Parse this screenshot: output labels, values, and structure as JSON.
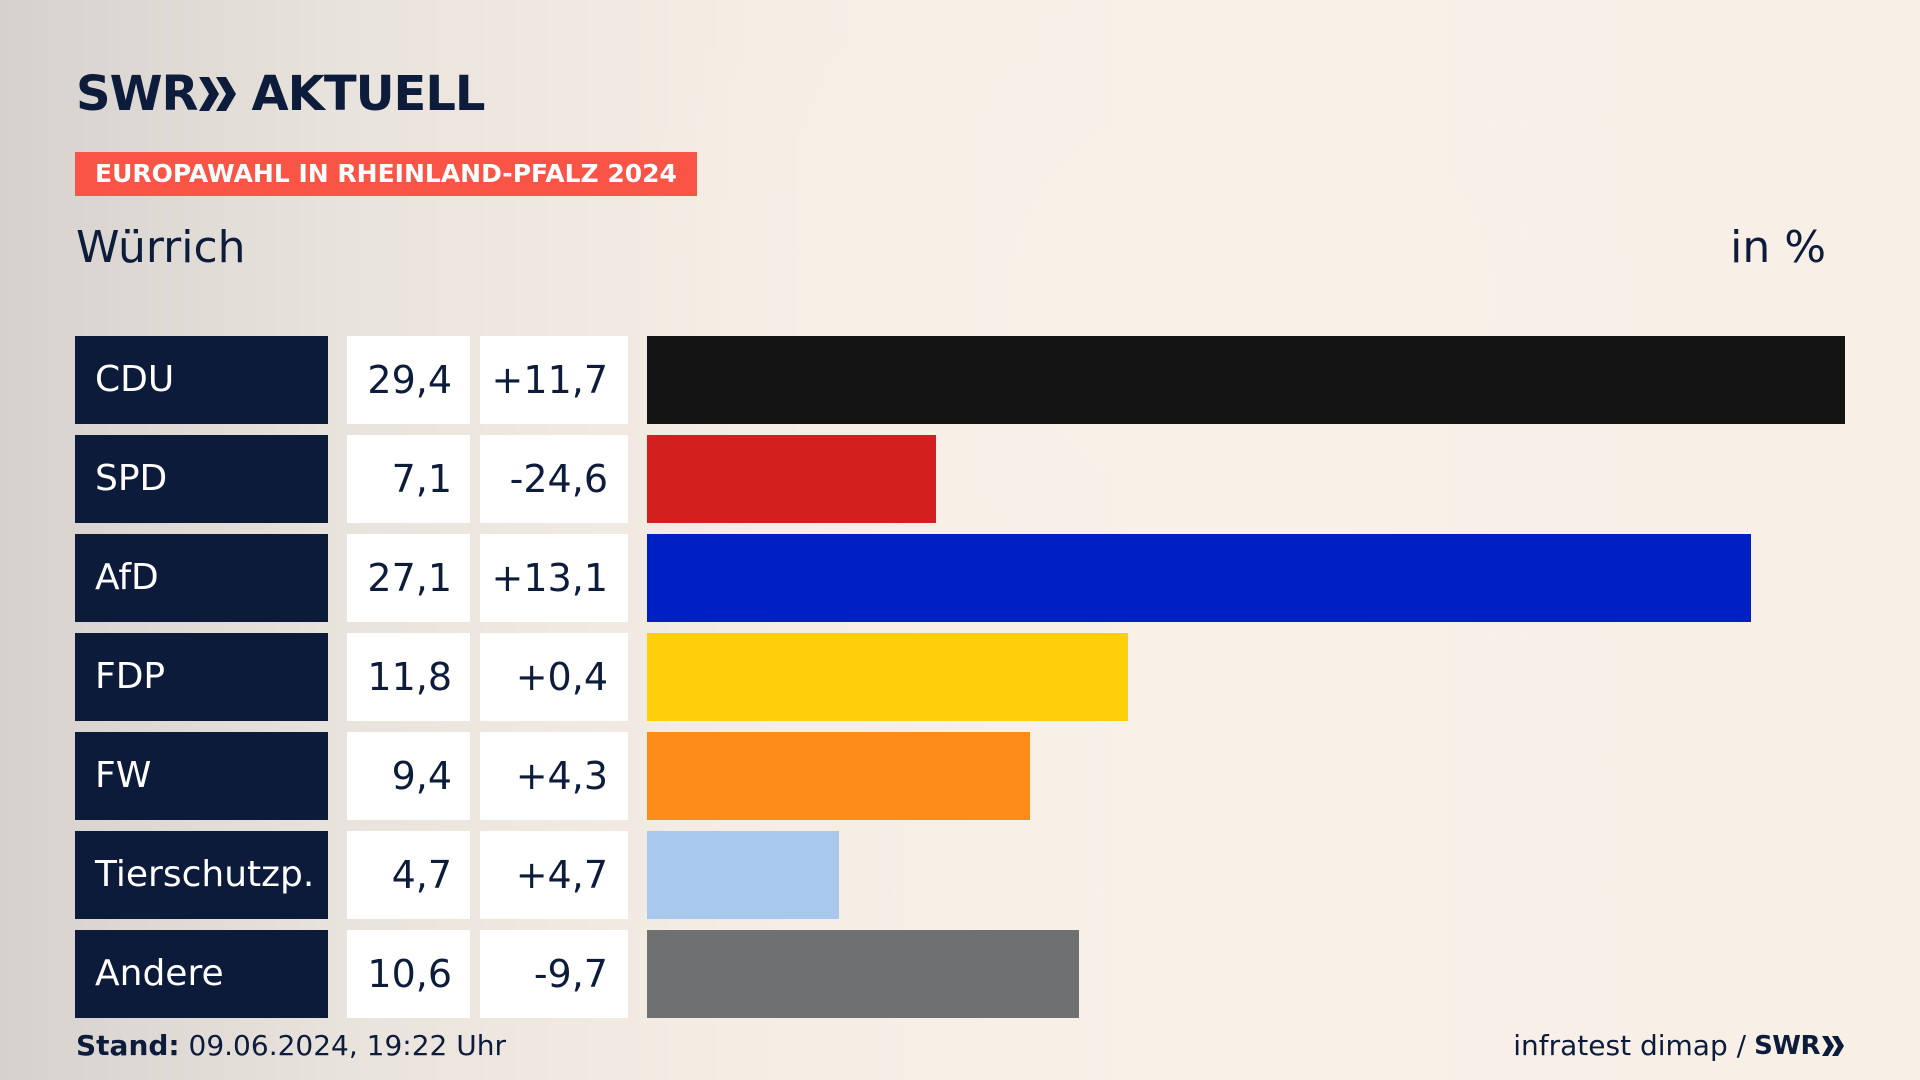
{
  "brand": {
    "logo_text_left": "SWR",
    "logo_text_right": "AKTUELL",
    "logo_color": "#0c1c3a"
  },
  "tag": {
    "label": "EUROPAWAHL IN RHEINLAND-PFALZ 2024",
    "color": "#fa5446"
  },
  "region": "Würrich",
  "unit": "in %",
  "chart_data": {
    "type": "bar",
    "title": "Europawahl in Rheinland-Pfalz 2024 – Würrich",
    "unit": "in %",
    "xlim": [
      0,
      29.4
    ],
    "categories": [
      "CDU",
      "SPD",
      "AfD",
      "FDP",
      "FW",
      "Tierschutzp.",
      "Andere"
    ],
    "values": [
      29.4,
      7.1,
      27.1,
      11.8,
      9.4,
      4.7,
      10.6
    ],
    "value_labels": [
      "29,4",
      "7,1",
      "27,1",
      "11,8",
      "9,4",
      "4,7",
      "10,6"
    ],
    "diff_labels": [
      "+11,7",
      "-24,6",
      "+13,1",
      "+0,4",
      "+4,3",
      "+4,7",
      "-9,7"
    ],
    "colors": [
      "#141414",
      "#d41f1f",
      "#0020c6",
      "#ffcf0b",
      "#fe8c19",
      "#a8c8ee",
      "#6f7072"
    ]
  },
  "footer": {
    "stand_label": "Stand:",
    "stand_value": "09.06.2024, 19:22 Uhr",
    "source": "infratest dimap /",
    "source_brand": "SWR"
  }
}
